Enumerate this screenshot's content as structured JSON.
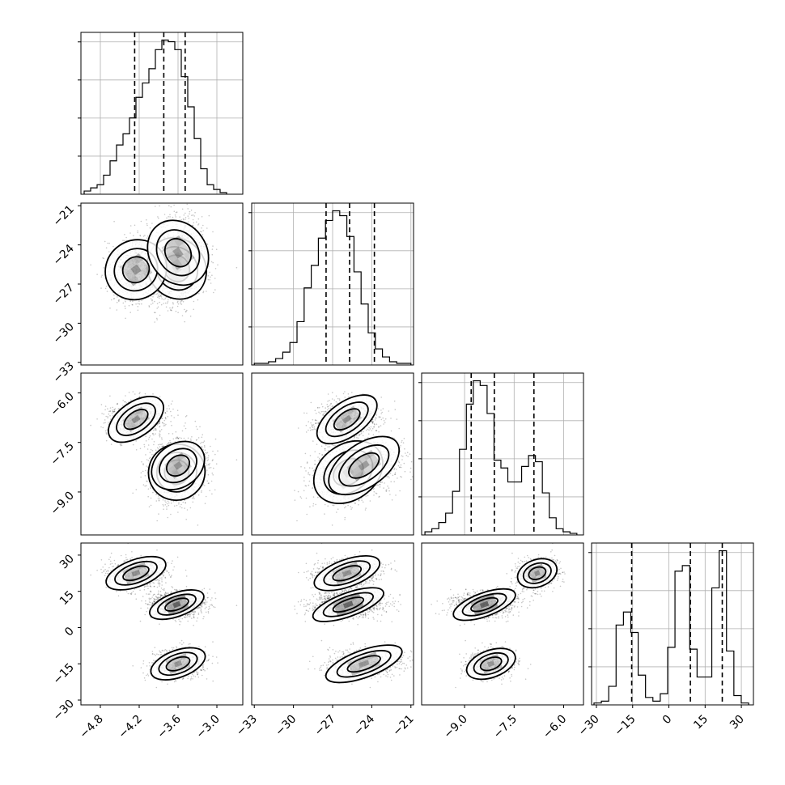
{
  "chart_data": {
    "type": "corner",
    "parameters": [
      {
        "name": "",
        "range": [
          -5.1,
          -2.6
        ],
        "ticks": [
          -4.8,
          -4.2,
          -3.6,
          -3.0
        ],
        "tick_labels": [
          "−4.8",
          "−4.2",
          "−3.6",
          "−3.0"
        ],
        "quantiles": [
          -4.27,
          -3.82,
          -3.49
        ]
      },
      {
        "name": "",
        "range": [
          -33.2,
          -20.8
        ],
        "ticks": [
          -33,
          -30,
          -27,
          -24,
          -21
        ],
        "tick_labels": [
          "−33",
          "−30",
          "−27",
          "−24",
          "−21"
        ],
        "quantiles": [
          -27.5,
          -25.7,
          -23.8
        ]
      },
      {
        "name": "",
        "range": [
          -10.3,
          -5.4
        ],
        "ticks": [
          -9.0,
          -7.5,
          -6.0
        ],
        "tick_labels": [
          "−9.0",
          "−7.5",
          "−6.0"
        ],
        "quantiles": [
          -8.8,
          -8.1,
          -6.9
        ]
      },
      {
        "name": "",
        "range": [
          -32,
          35
        ],
        "ticks": [
          -30,
          -15,
          0,
          15,
          30
        ],
        "tick_labels": [
          "−30",
          "−15",
          "0",
          "15",
          "30"
        ],
        "quantiles": [
          -15.4,
          8.9,
          22.1
        ]
      }
    ],
    "histograms": [
      {
        "counts": [
          2,
          4,
          6,
          12,
          21,
          31,
          38,
          48,
          61,
          70,
          79,
          91,
          97,
          96,
          91,
          74,
          55,
          35,
          16,
          6,
          3,
          1
        ],
        "edges_range": [
          -5.05,
          -2.85
        ]
      },
      {
        "counts": [
          1,
          1,
          2,
          4,
          8,
          14,
          27,
          48,
          62,
          79,
          90,
          96,
          93,
          80,
          58,
          38,
          20,
          10,
          5,
          2,
          1,
          1
        ],
        "edges_range": [
          -33.0,
          -21.0
        ]
      },
      {
        "counts": [
          2,
          4,
          8,
          14,
          28,
          55,
          84,
          99,
          96,
          78,
          48,
          43,
          34,
          34,
          44,
          51,
          47,
          27,
          11,
          4,
          2,
          1
        ],
        "edges_range": [
          -10.2,
          -5.6
        ]
      },
      {
        "counts": [
          1,
          2,
          10,
          43,
          50,
          39,
          16,
          4,
          2,
          6,
          31,
          72,
          75,
          30,
          15,
          15,
          63,
          83,
          29,
          5,
          1
        ],
        "edges_range": [
          -31,
          33
        ]
      }
    ],
    "modes": [
      {
        "center": [
          -3.62,
          -25.8,
          -8.4,
          9.5
        ],
        "weight": 0.42
      },
      {
        "center": [
          -4.25,
          -25.9,
          -6.8,
          22.5
        ],
        "weight": 0.3
      },
      {
        "center": [
          -3.6,
          -24.6,
          -8.2,
          -15.0
        ],
        "weight": 0.28
      }
    ],
    "grid": true,
    "contour_levels": 3
  }
}
